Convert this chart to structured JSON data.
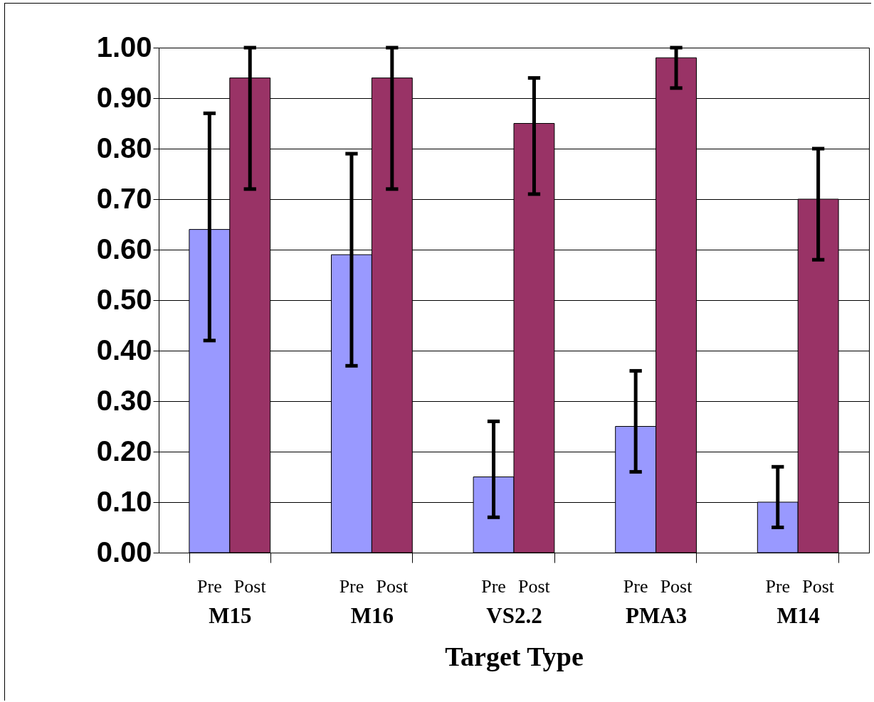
{
  "chart_data": {
    "type": "bar",
    "xlabel": "Target Type",
    "categories": [
      "M15",
      "M16",
      "VS2.2",
      "PMA3",
      "M14"
    ],
    "series": [
      {
        "name": "Pre",
        "color": "#9999ff",
        "values": [
          0.64,
          0.59,
          0.15,
          0.25,
          0.1
        ],
        "errors": [
          [
            0.42,
            0.87
          ],
          [
            0.37,
            0.79
          ],
          [
            0.07,
            0.26
          ],
          [
            0.16,
            0.36
          ],
          [
            0.05,
            0.17
          ]
        ]
      },
      {
        "name": "Post",
        "color": "#993366",
        "values": [
          0.94,
          0.94,
          0.85,
          0.98,
          0.7
        ],
        "errors": [
          [
            0.72,
            1.0
          ],
          [
            0.72,
            1.0
          ],
          [
            0.71,
            0.94
          ],
          [
            0.92,
            1.0
          ],
          [
            0.58,
            0.8
          ]
        ]
      }
    ],
    "ylim": [
      0,
      1
    ],
    "yticks": [
      {
        "value": 0,
        "label": "0.00"
      },
      {
        "value": 0.1,
        "label": "0.10"
      },
      {
        "value": 0.2,
        "label": "0.20"
      },
      {
        "value": 0.3,
        "label": "0.30"
      },
      {
        "value": 0.4,
        "label": "0.40"
      },
      {
        "value": 0.5,
        "label": "0.50"
      },
      {
        "value": 0.6,
        "label": "0.60"
      },
      {
        "value": 0.7,
        "label": "0.70"
      },
      {
        "value": 0.8,
        "label": "0.80"
      },
      {
        "value": 0.9,
        "label": "0.90"
      },
      {
        "value": 1,
        "label": "1.00"
      }
    ],
    "grid": "y",
    "legend": false
  }
}
